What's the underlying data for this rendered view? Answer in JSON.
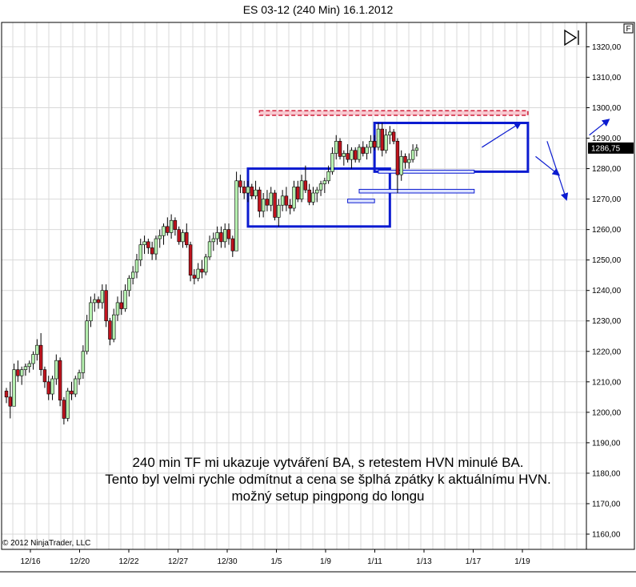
{
  "title": "ES 03-12 (240 Min)  16.1.2012",
  "copyright": "© 2012 NinjaTrader, LLC",
  "annotation_lines": [
    "240 min TF mi ukazuje vytváření BA, s retestem HVN minulé BA.",
    "Tento byl velmi rychle odmítnut a cena se šplhá zpátky k aktuálnímu HVN.",
    "možný setup pingpong do longu"
  ],
  "corner_box_label": "F",
  "colors": {
    "up": "#b6f0b0",
    "down": "#c0141e",
    "wick": "#000000",
    "box": "#0b1bd0",
    "resistance": "#d11f3a",
    "grid": "#d9d9d9",
    "price_tag": "#000000"
  },
  "chart_data": {
    "type": "candlestick",
    "ylim": [
      1155,
      1328
    ],
    "y_ticks": [
      1160,
      1170,
      1180,
      1190,
      1200,
      1210,
      1220,
      1230,
      1240,
      1250,
      1260,
      1270,
      1280,
      1290,
      1300,
      1310,
      1320
    ],
    "y_tick_labels": [
      "1160,00",
      "1170,00",
      "1180,00",
      "1190,00",
      "1200,00",
      "1210,00",
      "1220,00",
      "1230,00",
      "1240,00",
      "1250,00",
      "1260,00",
      "1270,00",
      "1280,00",
      "1290,00",
      "1300,00",
      "1310,00",
      "1320,00"
    ],
    "x_labels": [
      "12/16",
      "12/20",
      "12/22",
      "12/27",
      "12/30",
      "1/5",
      "1/9",
      "1/11",
      "1/13",
      "1/17",
      "1/19"
    ],
    "last_price_label": "1286,75",
    "last_price": 1286.75,
    "bar_count": 150,
    "candles": [
      [
        1207,
        1208,
        1203,
        1205
      ],
      [
        1205,
        1210,
        1198,
        1202
      ],
      [
        1202,
        1216,
        1202,
        1214
      ],
      [
        1214,
        1217,
        1210,
        1212
      ],
      [
        1212,
        1215,
        1209,
        1214
      ],
      [
        1214,
        1216,
        1212,
        1215
      ],
      [
        1215,
        1217,
        1213,
        1216
      ],
      [
        1216,
        1220,
        1214,
        1219
      ],
      [
        1219,
        1224,
        1217,
        1222
      ],
      [
        1222,
        1226,
        1212,
        1214
      ],
      [
        1214,
        1215,
        1208,
        1210
      ],
      [
        1210,
        1212,
        1204,
        1206
      ],
      [
        1206,
        1212,
        1204,
        1211
      ],
      [
        1211,
        1219,
        1209,
        1217
      ],
      [
        1217,
        1218,
        1202,
        1204
      ],
      [
        1204,
        1205,
        1196,
        1198
      ],
      [
        1198,
        1208,
        1197,
        1207
      ],
      [
        1207,
        1210,
        1204,
        1206
      ],
      [
        1206,
        1212,
        1205,
        1211
      ],
      [
        1211,
        1214,
        1209,
        1213
      ],
      [
        1213,
        1222,
        1211,
        1220
      ],
      [
        1220,
        1232,
        1219,
        1230
      ],
      [
        1230,
        1238,
        1228,
        1236
      ],
      [
        1236,
        1239,
        1233,
        1237
      ],
      [
        1237,
        1238,
        1234,
        1236
      ],
      [
        1236,
        1242,
        1234,
        1240
      ],
      [
        1240,
        1242,
        1228,
        1230
      ],
      [
        1230,
        1231,
        1222,
        1224
      ],
      [
        1224,
        1234,
        1223,
        1232
      ],
      [
        1232,
        1238,
        1230,
        1236
      ],
      [
        1236,
        1240,
        1232,
        1234
      ],
      [
        1234,
        1242,
        1233,
        1240
      ],
      [
        1240,
        1245,
        1238,
        1244
      ],
      [
        1244,
        1248,
        1242,
        1246
      ],
      [
        1246,
        1252,
        1244,
        1250
      ],
      [
        1250,
        1257,
        1248,
        1255
      ],
      [
        1255,
        1258,
        1252,
        1256
      ],
      [
        1256,
        1257,
        1252,
        1254
      ],
      [
        1254,
        1256,
        1250,
        1252
      ],
      [
        1252,
        1258,
        1250,
        1257
      ],
      [
        1257,
        1260,
        1254,
        1258
      ],
      [
        1258,
        1262,
        1255,
        1261
      ],
      [
        1261,
        1264,
        1258,
        1259
      ],
      [
        1259,
        1265,
        1257,
        1263
      ],
      [
        1263,
        1264,
        1258,
        1260
      ],
      [
        1260,
        1261,
        1255,
        1256
      ],
      [
        1256,
        1260,
        1254,
        1259
      ],
      [
        1259,
        1262,
        1254,
        1255
      ],
      [
        1255,
        1256,
        1243,
        1245
      ],
      [
        1245,
        1247,
        1242,
        1244
      ],
      [
        1244,
        1249,
        1243,
        1247
      ],
      [
        1247,
        1250,
        1244,
        1246
      ],
      [
        1246,
        1252,
        1245,
        1251
      ],
      [
        1251,
        1258,
        1250,
        1256
      ],
      [
        1256,
        1259,
        1253,
        1257
      ],
      [
        1257,
        1261,
        1255,
        1259
      ],
      [
        1259,
        1261,
        1254,
        1256
      ],
      [
        1256,
        1262,
        1254,
        1260
      ],
      [
        1260,
        1262,
        1255,
        1257
      ],
      [
        1257,
        1258,
        1251,
        1253
      ],
      [
        1253,
        1279,
        1253,
        1276
      ],
      [
        1276,
        1278,
        1272,
        1274
      ],
      [
        1274,
        1276,
        1270,
        1272
      ],
      [
        1272,
        1276,
        1269,
        1274
      ],
      [
        1274,
        1275,
        1270,
        1271
      ],
      [
        1271,
        1276,
        1270,
        1273
      ],
      [
        1273,
        1274,
        1264,
        1266
      ],
      [
        1266,
        1272,
        1264,
        1270
      ],
      [
        1270,
        1273,
        1266,
        1268
      ],
      [
        1268,
        1274,
        1266,
        1272
      ],
      [
        1272,
        1273,
        1263,
        1264
      ],
      [
        1264,
        1270,
        1261,
        1268
      ],
      [
        1268,
        1273,
        1266,
        1271
      ],
      [
        1271,
        1274,
        1266,
        1268
      ],
      [
        1268,
        1270,
        1265,
        1267
      ],
      [
        1267,
        1276,
        1266,
        1274
      ],
      [
        1274,
        1276,
        1269,
        1270
      ],
      [
        1270,
        1278,
        1269,
        1276
      ],
      [
        1276,
        1281,
        1272,
        1273
      ],
      [
        1273,
        1275,
        1268,
        1269
      ],
      [
        1269,
        1274,
        1268,
        1272
      ],
      [
        1272,
        1274,
        1269,
        1273
      ],
      [
        1273,
        1276,
        1271,
        1275
      ],
      [
        1275,
        1277,
        1272,
        1276
      ],
      [
        1276,
        1281,
        1275,
        1279
      ],
      [
        1279,
        1287,
        1278,
        1285
      ],
      [
        1285,
        1291,
        1283,
        1289
      ],
      [
        1289,
        1290,
        1283,
        1284
      ],
      [
        1284,
        1286,
        1281,
        1285
      ],
      [
        1285,
        1288,
        1282,
        1283
      ],
      [
        1283,
        1287,
        1280,
        1286
      ],
      [
        1286,
        1287,
        1282,
        1283
      ],
      [
        1283,
        1288,
        1282,
        1287
      ],
      [
        1287,
        1289,
        1284,
        1285
      ],
      [
        1285,
        1288,
        1283,
        1287
      ],
      [
        1287,
        1291,
        1285,
        1289
      ],
      [
        1289,
        1291,
        1286,
        1287
      ],
      [
        1287,
        1295,
        1286,
        1293
      ],
      [
        1293,
        1295,
        1284,
        1286
      ],
      [
        1286,
        1293,
        1285,
        1291
      ],
      [
        1291,
        1294,
        1288,
        1292
      ],
      [
        1292,
        1293,
        1288,
        1289
      ],
      [
        1289,
        1290,
        1272,
        1278
      ],
      [
        1278,
        1286,
        1276,
        1284
      ],
      [
        1284,
        1285,
        1280,
        1282
      ],
      [
        1282,
        1285,
        1280,
        1283
      ],
      [
        1283,
        1288,
        1282,
        1286
      ],
      [
        1286,
        1288,
        1284,
        1286.75
      ]
    ],
    "boxes": [
      {
        "x_from": 63,
        "x_to": 100,
        "y_low": 1261,
        "y_high": 1280
      },
      {
        "x_from": 96,
        "x_to": 136,
        "y_low": 1279,
        "y_high": 1295
      }
    ],
    "resistance": {
      "x_from": 66,
      "x_to": 136,
      "y_low": 1297.5,
      "y_high": 1299
    },
    "hvn_zones": [
      {
        "x_from": 89,
        "x_to": 96,
        "y_low": 1268.8,
        "y_high": 1270
      },
      {
        "x_from": 92,
        "x_to": 122,
        "y_low": 1272,
        "y_high": 1273.2
      },
      {
        "x_from": 97,
        "x_to": 122,
        "y_low": 1278.5,
        "y_high": 1279.5
      }
    ],
    "projection_path": [
      [
        124,
        1287
      ],
      [
        134,
        1295
      ],
      [
        138,
        1284
      ],
      [
        144,
        1278
      ],
      [
        141,
        1289
      ],
      [
        146,
        1270
      ],
      [
        152,
        1291
      ],
      [
        157,
        1296
      ]
    ]
  }
}
